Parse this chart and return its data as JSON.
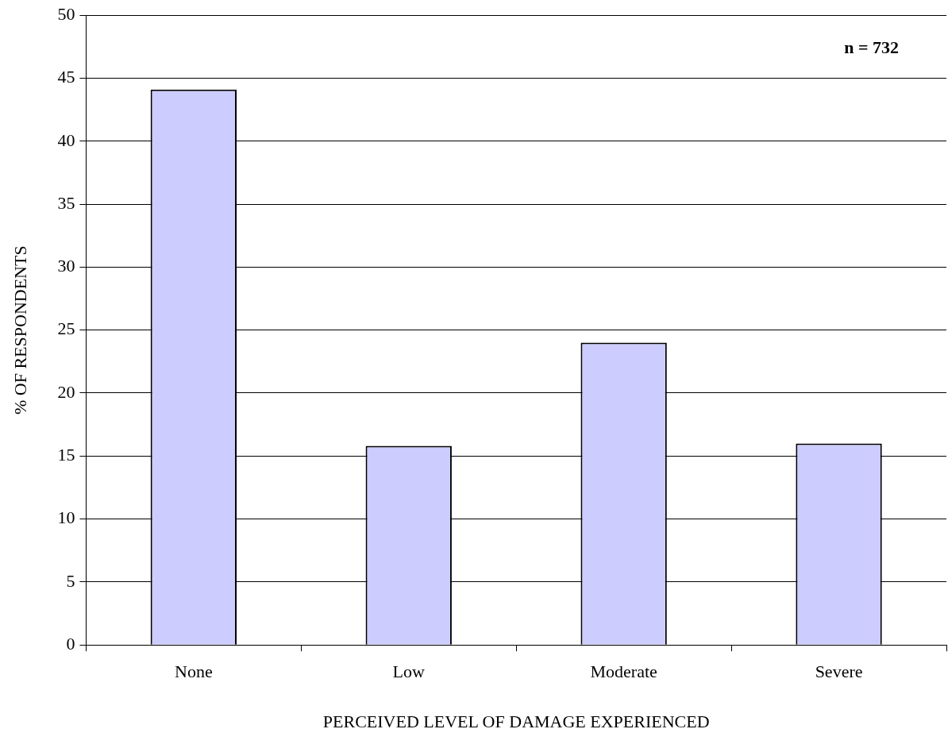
{
  "chart_data": {
    "type": "bar",
    "xlabel": "PERCEIVED LEVEL OF DAMAGE EXPERIENCED",
    "ylabel": "% OF RESPONDENTS",
    "categories": [
      "None",
      "Low",
      "Moderate",
      "Severe"
    ],
    "values": [
      44.1,
      15.8,
      24.0,
      16.0
    ],
    "color": "#ccccff",
    "ylim": [
      0,
      50
    ],
    "yticks": [
      0,
      5,
      10,
      15,
      20,
      25,
      30,
      35,
      40,
      45,
      50
    ],
    "grid": "y",
    "annotations": [
      "n = 732"
    ]
  }
}
